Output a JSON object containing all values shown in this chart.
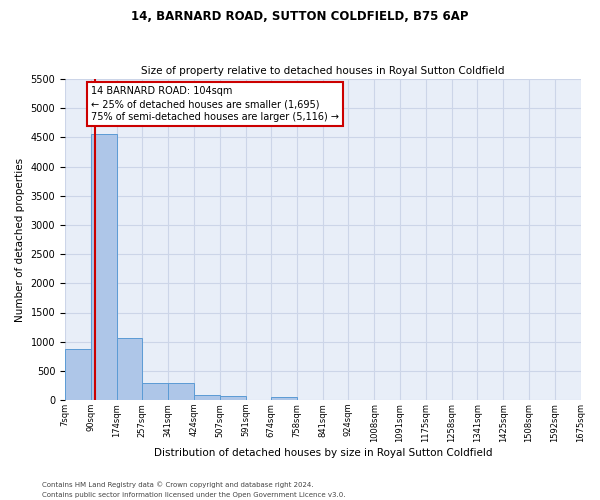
{
  "title1": "14, BARNARD ROAD, SUTTON COLDFIELD, B75 6AP",
  "title2": "Size of property relative to detached houses in Royal Sutton Coldfield",
  "xlabel": "Distribution of detached houses by size in Royal Sutton Coldfield",
  "ylabel": "Number of detached properties",
  "footer1": "Contains HM Land Registry data © Crown copyright and database right 2024.",
  "footer2": "Contains public sector information licensed under the Open Government Licence v3.0.",
  "bar_edges": [
    7,
    90,
    174,
    257,
    341,
    424,
    507,
    591,
    674,
    758,
    841,
    924,
    1008,
    1091,
    1175,
    1258,
    1341,
    1425,
    1508,
    1592,
    1675
  ],
  "bar_heights": [
    880,
    4560,
    1060,
    290,
    290,
    90,
    75,
    0,
    60,
    0,
    0,
    0,
    0,
    0,
    0,
    0,
    0,
    0,
    0,
    0
  ],
  "bar_color": "#aec6e8",
  "bar_edgecolor": "#5b9bd5",
  "property_size": 104,
  "red_line_color": "#cc0000",
  "annotation_text": "14 BARNARD ROAD: 104sqm\n← 25% of detached houses are smaller (1,695)\n75% of semi-detached houses are larger (5,116) →",
  "annotation_box_edgecolor": "#cc0000",
  "annotation_box_facecolor": "#ffffff",
  "ylim": [
    0,
    5500
  ],
  "yticks": [
    0,
    500,
    1000,
    1500,
    2000,
    2500,
    3000,
    3500,
    4000,
    4500,
    5000,
    5500
  ],
  "tick_labels": [
    "7sqm",
    "90sqm",
    "174sqm",
    "257sqm",
    "341sqm",
    "424sqm",
    "507sqm",
    "591sqm",
    "674sqm",
    "758sqm",
    "841sqm",
    "924sqm",
    "1008sqm",
    "1091sqm",
    "1175sqm",
    "1258sqm",
    "1341sqm",
    "1425sqm",
    "1508sqm",
    "1592sqm",
    "1675sqm"
  ],
  "grid_color": "#ccd5e8",
  "bg_color": "#e8eef8"
}
